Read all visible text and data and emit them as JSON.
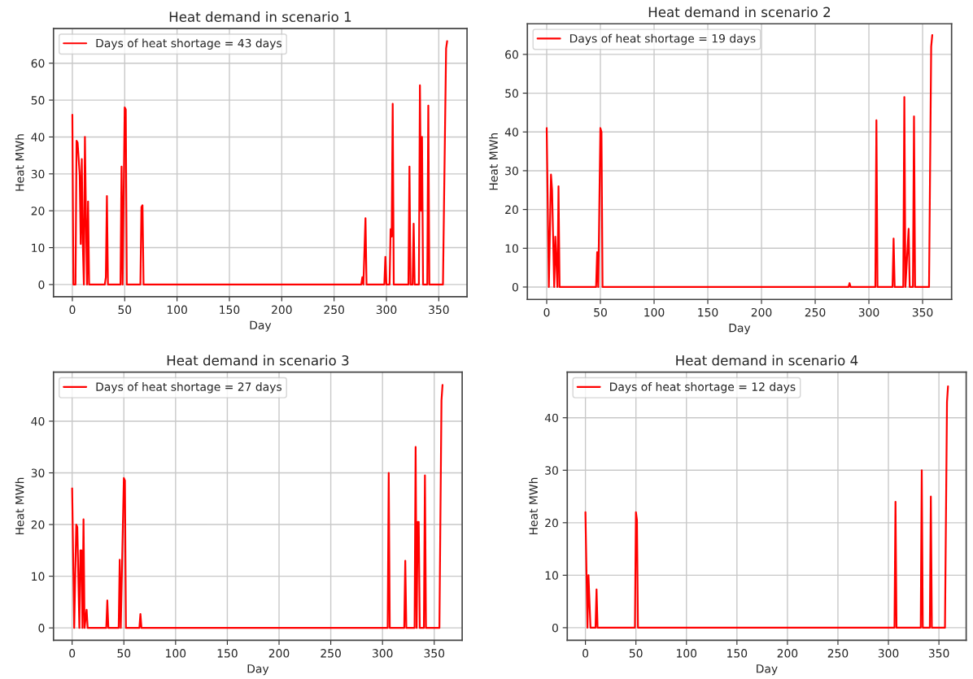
{
  "chart_data": [
    {
      "type": "line",
      "title": "Heat demand in scenario 1",
      "xlabel": "Day",
      "ylabel": "Heat MWh",
      "xlim": [
        -18,
        377
      ],
      "ylim": [
        -3.3,
        69.4
      ],
      "xticks": [
        0,
        50,
        100,
        150,
        200,
        250,
        300,
        350
      ],
      "yticks": [
        0,
        10,
        20,
        30,
        40,
        50,
        60
      ],
      "grid": true,
      "legend": "top left",
      "series": [
        {
          "name": "Days of heat shortage = 43 days",
          "color": "#ff0000",
          "x": [
            0,
            1,
            3,
            4,
            5,
            7,
            8,
            9,
            10,
            11,
            12,
            13,
            14,
            15,
            16,
            31,
            32,
            33,
            34,
            46,
            47,
            48,
            50,
            51,
            52,
            65,
            66,
            67,
            68,
            276,
            277,
            278,
            280,
            281,
            298,
            299,
            300,
            303,
            304,
            305,
            306,
            307,
            321,
            322,
            323,
            325,
            326,
            327,
            331,
            332,
            333,
            334,
            335,
            339,
            340,
            341,
            354,
            357,
            358
          ],
          "values": [
            46,
            0,
            0,
            39,
            38.5,
            30,
            11,
            34,
            11,
            0,
            40,
            18,
            0,
            22.5,
            0,
            0,
            2,
            24,
            0,
            0,
            32,
            0,
            48,
            47.5,
            0,
            0,
            21,
            21.5,
            0,
            0,
            2,
            0,
            18,
            0,
            0,
            7.5,
            0,
            0,
            15,
            13,
            49,
            0,
            0,
            32,
            0,
            0,
            16.5,
            0,
            0,
            54,
            20,
            40,
            0,
            0,
            48.5,
            0,
            0,
            64,
            66
          ]
        }
      ]
    },
    {
      "type": "line",
      "title": "Heat demand in scenario 2",
      "xlabel": "Day",
      "ylabel": "Heat MWh",
      "xlim": [
        -18,
        377
      ],
      "ylim": [
        -3.2,
        67.9
      ],
      "xticks": [
        0,
        50,
        100,
        150,
        200,
        250,
        300,
        350
      ],
      "yticks": [
        0,
        10,
        20,
        30,
        40,
        50,
        60
      ],
      "grid": true,
      "legend": "top left",
      "series": [
        {
          "name": "Days of heat shortage = 19 days",
          "color": "#ff0000",
          "x": [
            0,
            2,
            4,
            5,
            7,
            8,
            10,
            11,
            12,
            46,
            47,
            48,
            50,
            51,
            52,
            281,
            282,
            283,
            306,
            307,
            308,
            322,
            323,
            324,
            332,
            333,
            334,
            337,
            338,
            341,
            342,
            343,
            356,
            358,
            359
          ],
          "values": [
            41,
            0,
            29,
            25,
            0,
            13,
            0,
            26,
            0,
            0,
            9,
            0,
            41,
            40,
            0,
            0,
            1,
            0,
            0,
            43,
            0,
            0,
            12.5,
            0,
            0,
            49,
            0,
            15,
            0,
            0,
            44,
            0,
            0,
            62,
            65
          ]
        }
      ]
    },
    {
      "type": "line",
      "title": "Heat demand in scenario 3",
      "xlabel": "Day",
      "ylabel": "Heat MWh",
      "xlim": [
        -18,
        377
      ],
      "ylim": [
        -2.4,
        49.5
      ],
      "xticks": [
        0,
        50,
        100,
        150,
        200,
        250,
        300,
        350
      ],
      "yticks": [
        0,
        10,
        20,
        30,
        40
      ],
      "grid": true,
      "legend": "top left",
      "series": [
        {
          "name": "Days of heat shortage = 27 days",
          "color": "#ff0000",
          "x": [
            0,
            2,
            4,
            5,
            7,
            8,
            9,
            10,
            11,
            12,
            14,
            15,
            33,
            34,
            35,
            45,
            46,
            47,
            50,
            51,
            52,
            65,
            66,
            67,
            305,
            306,
            307,
            321,
            322,
            323,
            331,
            332,
            333,
            334,
            335,
            336,
            340,
            341,
            342,
            355,
            357,
            358
          ],
          "values": [
            27,
            0,
            20,
            19.5,
            0,
            15,
            15,
            0,
            21,
            0,
            3.5,
            0,
            0,
            5.3,
            0,
            0,
            13.2,
            0,
            29,
            28.5,
            0,
            0,
            2.7,
            0,
            0,
            30,
            0,
            0,
            13,
            0,
            0,
            35,
            0,
            20.5,
            20.5,
            0,
            0,
            29.5,
            0,
            0,
            44,
            47
          ]
        }
      ]
    },
    {
      "type": "line",
      "title": "Heat demand in scenario 4",
      "xlabel": "Day",
      "ylabel": "Heat MWh",
      "xlim": [
        -18,
        377
      ],
      "ylim": [
        -2.4,
        48.7
      ],
      "xticks": [
        0,
        50,
        100,
        150,
        200,
        250,
        300,
        350
      ],
      "yticks": [
        0,
        10,
        20,
        30,
        40
      ],
      "grid": true,
      "legend": "top left",
      "series": [
        {
          "name": "Days of heat shortage = 12 days",
          "color": "#ff0000",
          "x": [
            0,
            2,
            3,
            5,
            10,
            11,
            12,
            49,
            50,
            51,
            52,
            306,
            307,
            308,
            332,
            333,
            334,
            341,
            342,
            343,
            356,
            358,
            359
          ],
          "values": [
            22,
            0,
            10,
            0,
            0,
            7.3,
            0,
            0,
            22,
            20.5,
            0,
            0,
            24,
            0,
            0,
            30,
            0,
            0,
            25,
            0,
            0,
            43,
            46
          ]
        }
      ]
    }
  ]
}
